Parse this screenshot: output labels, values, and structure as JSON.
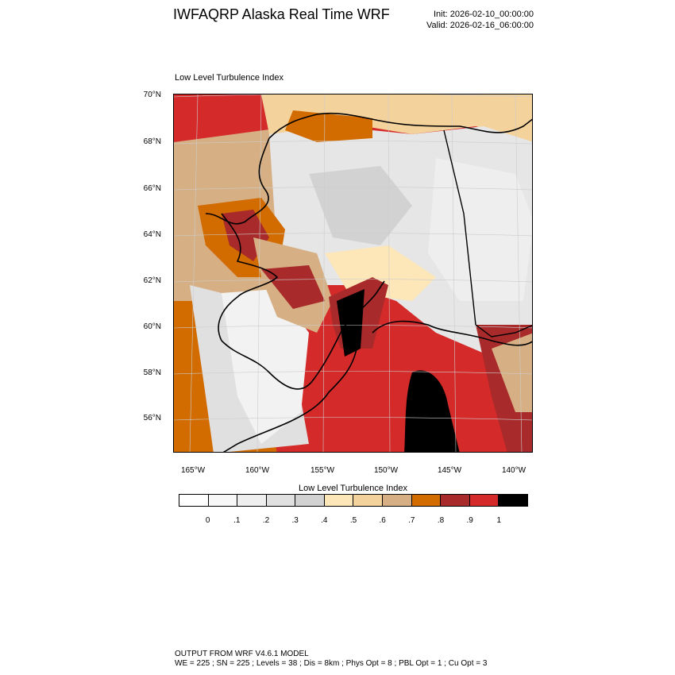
{
  "header": {
    "title": "IWFAQRP Alaska Real Time WRF",
    "init": "Init: 2026-02-10_00:00:00",
    "valid": "Valid: 2026-02-16_06:00:00"
  },
  "map": {
    "title": "Low Level Turbulence Index",
    "lat_labels": [
      "70°N",
      "68°N",
      "66°N",
      "64°N",
      "62°N",
      "60°N",
      "58°N",
      "56°N"
    ],
    "lon_labels": [
      "165°W",
      "160°W",
      "155°W",
      "150°W",
      "145°W",
      "140°W"
    ],
    "ocean_color": "#d42a2a",
    "land_base_color": "#e6e6e6"
  },
  "colorbar": {
    "title": "Low Level Turbulence Index",
    "colors": [
      "#ffffff",
      "#f7f7f7",
      "#eeeeee",
      "#e0e0e0",
      "#d2d2d2",
      "#fde6b8",
      "#f4d29c",
      "#d6b084",
      "#d26b00",
      "#a92a2a",
      "#d42a2a",
      "#000000"
    ],
    "labels": [
      "0",
      ".1",
      ".2",
      ".3",
      ".4",
      ".5",
      ".6",
      ".7",
      ".8",
      ".9",
      "1"
    ]
  },
  "footer": {
    "line1": "OUTPUT FROM WRF V4.6.1 MODEL",
    "line2": "WE = 225 ; SN = 225 ; Levels = 38 ; Dis = 8km ; Phys Opt = 8 ; PBL Opt = 1 ; Cu Opt = 3"
  }
}
